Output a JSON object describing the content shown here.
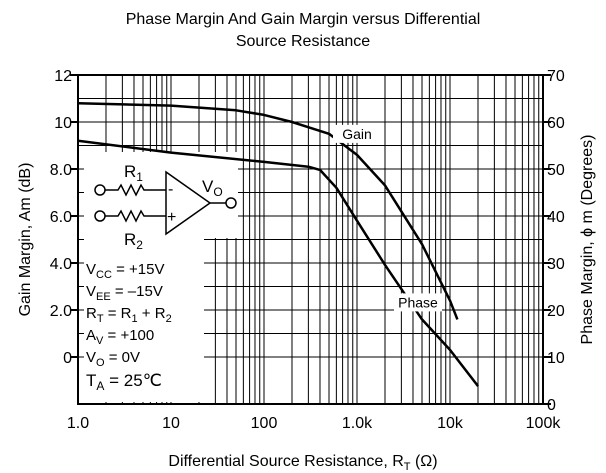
{
  "chart_data": {
    "type": "line",
    "title": [
      "Phase Margin And Gain Margin versus Differential",
      "Source Resistance"
    ],
    "x_label": [
      "Differential Source Resistance, R",
      "T",
      " (Ω)"
    ],
    "y_label": "Gain Margin, Am (dB)",
    "y2_label": "Phase Margin, ϕ m (Degrees)",
    "xscale": "log",
    "xlim": [
      1,
      100000
    ],
    "xticks": [
      {
        "value": 1,
        "label": "1.0"
      },
      10,
      100,
      {
        "value": 1000,
        "label": "1.0k"
      },
      {
        "value": 10000,
        "label": "10k"
      },
      {
        "value": 100000,
        "label": "100k"
      }
    ],
    "ylim": [
      -2,
      12
    ],
    "yticks": [
      0,
      {
        "value": 2,
        "label": "2.0"
      },
      {
        "value": 4,
        "label": "4.0"
      },
      {
        "value": 6,
        "label": "6.0"
      },
      {
        "value": 8,
        "label": "8.0"
      },
      10,
      12
    ],
    "y2lim": [
      0,
      70
    ],
    "y2ticks": [
      0,
      10,
      20,
      30,
      40,
      50,
      60,
      70
    ],
    "grid": true,
    "series": [
      {
        "name": "Gain",
        "color": "#000000",
        "axis": "y",
        "x": [
          1,
          10,
          50,
          100,
          200,
          500,
          1000,
          2000,
          5000,
          10000,
          12000
        ],
        "values": [
          10.8,
          10.7,
          10.5,
          10.3,
          10.0,
          9.5,
          8.6,
          7.3,
          4.8,
          2.4,
          1.6
        ]
      },
      {
        "name": "Phase",
        "color": "#000000",
        "axis": "y2",
        "x": [
          1,
          10,
          100,
          300,
          400,
          600,
          1000,
          2000,
          5000,
          10000,
          20000
        ],
        "values": [
          56,
          53.5,
          51.5,
          50.5,
          49.8,
          46,
          39,
          29.6,
          18,
          11.5,
          3.8
        ]
      }
    ],
    "circuit": {
      "r1": [
        "R",
        "1"
      ],
      "r2": [
        "R",
        "2"
      ],
      "vo": [
        "V",
        "O"
      ],
      "minus": "-",
      "plus": "+"
    },
    "conditions": [
      [
        "V",
        "CC",
        " = +15V"
      ],
      [
        "V",
        "EE",
        " = –15V"
      ],
      [
        "R",
        "T",
        " = R",
        "1",
        " + R",
        "2"
      ],
      [
        "A",
        "V",
        " = +100"
      ],
      [
        "V",
        "O",
        " = 0V"
      ],
      [
        "T",
        "A",
        " = 25℃"
      ]
    ]
  }
}
